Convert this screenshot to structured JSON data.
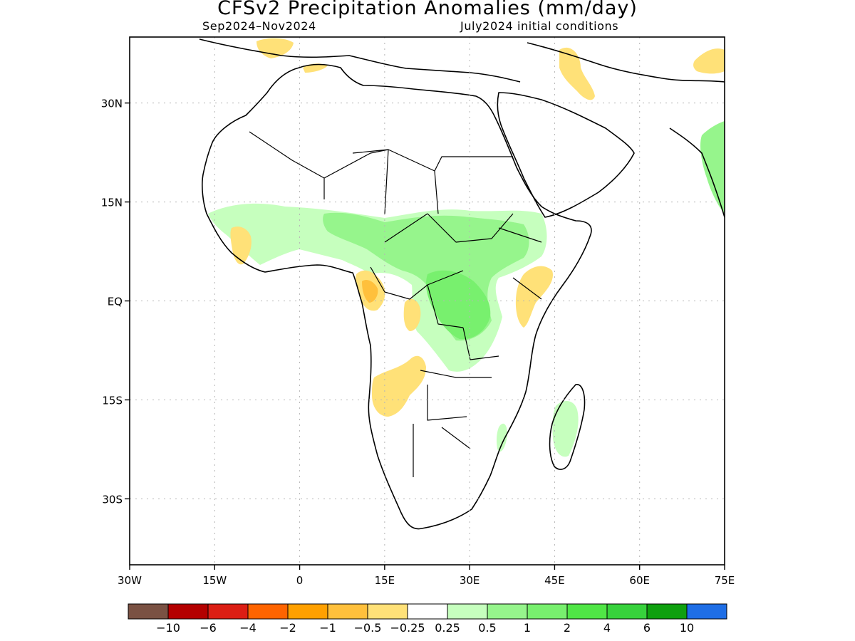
{
  "title": "CFSv2 Precipitation Anomalies (mm/day)",
  "subtitle_left": "Sep2024–Nov2024",
  "subtitle_right": "July2024 initial conditions",
  "map": {
    "lon_range": [
      -30,
      75
    ],
    "lat_range": [
      -40,
      40
    ],
    "y_ticks": [
      {
        "lat": 30,
        "label": "30N"
      },
      {
        "lat": 15,
        "label": "15N"
      },
      {
        "lat": 0,
        "label": "EQ"
      },
      {
        "lat": -15,
        "label": "15S"
      },
      {
        "lat": -30,
        "label": "30S"
      }
    ],
    "x_ticks": [
      {
        "lon": -30,
        "label": "30W"
      },
      {
        "lon": -15,
        "label": "15W"
      },
      {
        "lon": 0,
        "label": "0"
      },
      {
        "lon": 15,
        "label": "15E"
      },
      {
        "lon": 30,
        "label": "30E"
      },
      {
        "lon": 45,
        "label": "45E"
      },
      {
        "lon": 60,
        "label": "60E"
      },
      {
        "lon": 75,
        "label": "75E"
      }
    ],
    "grid": true
  },
  "colorbar": {
    "colors": [
      "#7a5143",
      "#b40000",
      "#dc1e14",
      "#ff6400",
      "#ffa000",
      "#ffc03c",
      "#ffe178",
      "#ffffff",
      "#c6ffbe",
      "#96f58c",
      "#78f06e",
      "#50e646",
      "#37d23c",
      "#0fa00f",
      "#1e6ee6"
    ],
    "labels": [
      "−10",
      "−6",
      "−4",
      "−2",
      "−1",
      "−0.5",
      "−0.25",
      "0.25",
      "0.5",
      "1",
      "2",
      "4",
      "6",
      "10"
    ]
  },
  "colors": {
    "dry_light": "#ffe178",
    "dry_mid": "#ffc03c",
    "dry_strong": "#ffa000",
    "wet_light": "#c6ffbe",
    "wet_mid": "#96f58c",
    "wet_strong": "#78f06e",
    "wet_heavy": "#50e646"
  }
}
